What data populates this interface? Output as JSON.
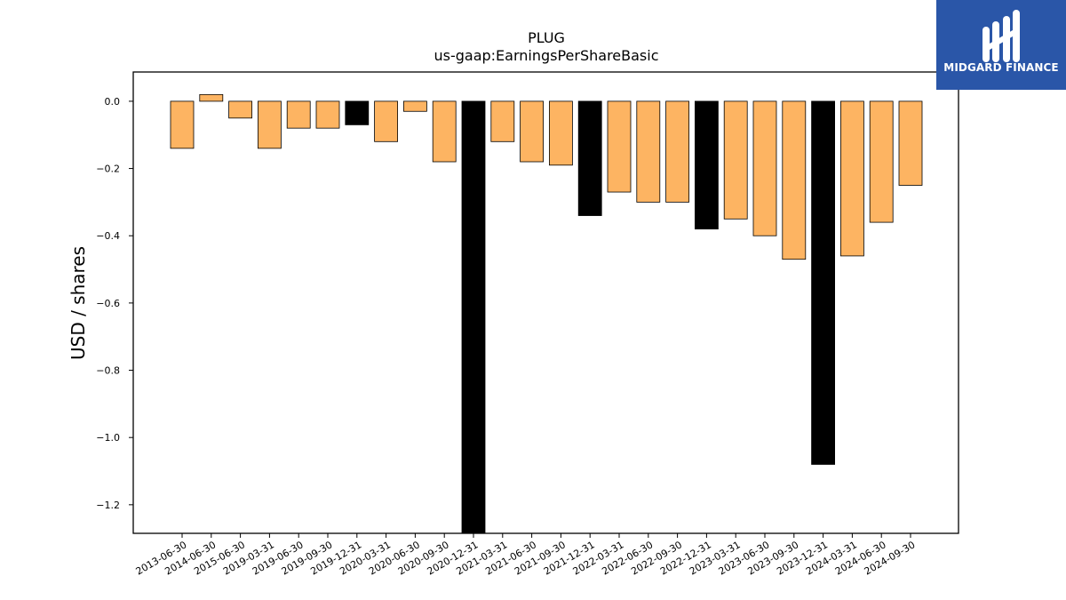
{
  "chart_data": {
    "type": "bar",
    "title": "PLUG",
    "subtitle": "us-gaap:EarningsPerShareBasic",
    "xlabel": "",
    "ylabel": "USD / shares",
    "ylim": [
      -1.285,
      0.087
    ],
    "yticks": [
      "0.0",
      "−0.2",
      "−0.4",
      "−0.6",
      "−0.8",
      "−1.0",
      "−1.2"
    ],
    "ytick_values": [
      0.0,
      -0.2,
      -0.4,
      -0.6,
      -0.8,
      -1.0,
      -1.2
    ],
    "grid": false,
    "legend": "none",
    "categories": [
      "2013-06-30",
      "2014-06-30",
      "2015-06-30",
      "2019-03-31",
      "2019-06-30",
      "2019-09-30",
      "2019-12-31",
      "2020-03-31",
      "2020-06-30",
      "2020-09-30",
      "2020-12-31",
      "2021-03-31",
      "2021-06-30",
      "2021-09-30",
      "2021-12-31",
      "2022-03-31",
      "2022-06-30",
      "2022-09-30",
      "2022-12-31",
      "2023-03-31",
      "2023-06-30",
      "2023-09-30",
      "2023-12-31",
      "2024-03-31",
      "2024-06-30",
      "2024-09-30"
    ],
    "values": [
      -0.14,
      0.02,
      -0.05,
      -0.14,
      -0.08,
      -0.08,
      -0.07,
      -0.12,
      -0.03,
      -0.18,
      -1.32,
      -0.12,
      -0.18,
      -0.19,
      -0.34,
      -0.27,
      -0.3,
      -0.3,
      -0.38,
      -0.35,
      -0.4,
      -0.47,
      -1.08,
      -0.46,
      -0.36,
      -0.25
    ],
    "highlight": [
      false,
      false,
      false,
      false,
      false,
      false,
      true,
      false,
      false,
      false,
      true,
      false,
      false,
      false,
      true,
      false,
      false,
      false,
      true,
      false,
      false,
      false,
      true,
      false,
      false,
      false
    ],
    "colors": {
      "bar": "#fdb462",
      "highlight": "#000000",
      "edge": "#000000"
    }
  },
  "logo": {
    "text": "MIDGARD FINANCE",
    "background": "#2a56a8"
  }
}
